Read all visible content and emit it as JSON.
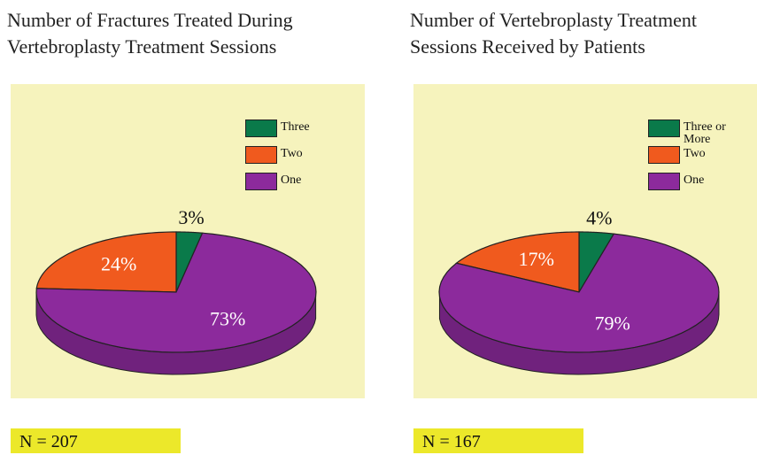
{
  "chart_data": [
    {
      "type": "pie",
      "title": "Number of Fractures Treated During Vertebroplasty Treatment Sessions",
      "categories": [
        "Three",
        "Two",
        "One"
      ],
      "values": [
        3,
        24,
        73
      ],
      "value_labels": [
        "3%",
        "24%",
        "73%"
      ],
      "colors": [
        "#0a7a4a",
        "#f05a1e",
        "#8c2a9c"
      ],
      "note": "N = 207"
    },
    {
      "type": "pie",
      "title": "Number of Vertebroplasty Treatment Sessions Received by Patients",
      "categories": [
        "Three or More",
        "Two",
        "One"
      ],
      "values": [
        4,
        17,
        79
      ],
      "value_labels": [
        "4%",
        "17%",
        "79%"
      ],
      "colors": [
        "#0a7a4a",
        "#f05a1e",
        "#8c2a9c"
      ],
      "note": "N = 167"
    }
  ]
}
